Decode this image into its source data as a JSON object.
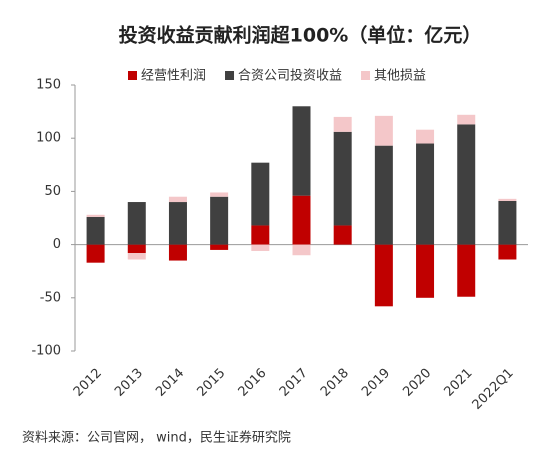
{
  "chart_data": {
    "type": "stacked_bar",
    "title": "投资收益贡献利润超100%（单位：亿元）",
    "source": "资料来源：公司官网， wind，民生证券研究院",
    "categories": [
      "2012",
      "2013",
      "2014",
      "2015",
      "2016",
      "2017",
      "2018",
      "2019",
      "2020",
      "2021",
      "2022Q1"
    ],
    "series": [
      {
        "name": "经营性利润",
        "color": "#c00000",
        "values": [
          -17,
          -8,
          -15,
          -5,
          18,
          46,
          18,
          -58,
          -50,
          -49,
          -14
        ]
      },
      {
        "name": "合资公司投资收益",
        "color": "#404040",
        "values": [
          26,
          40,
          40,
          45,
          59,
          84,
          88,
          93,
          95,
          113,
          41
        ]
      },
      {
        "name": "其他损益",
        "color": "#f4c7c9",
        "values": [
          2,
          -6,
          5,
          4,
          -6,
          -10,
          14,
          28,
          13,
          9,
          2
        ]
      }
    ],
    "ylim": [
      -100,
      150
    ],
    "yticks": [
      -100,
      -50,
      0,
      50,
      100,
      150
    ],
    "legend": "top"
  }
}
